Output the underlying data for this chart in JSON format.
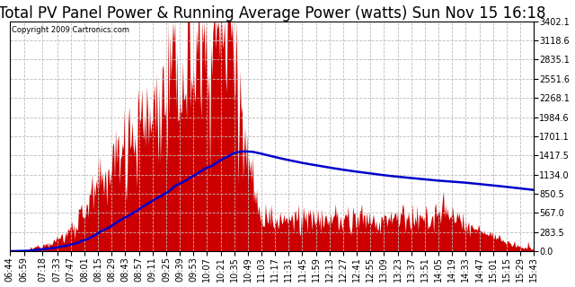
{
  "title": "Total PV Panel Power & Running Average Power (watts) Sun Nov 15 16:18",
  "copyright": "Copyright 2009 Cartronics.com",
  "background_color": "#ffffff",
  "plot_bg_color": "#ffffff",
  "y_max": 3402.1,
  "y_min": 0.0,
  "y_ticks": [
    0.0,
    283.5,
    567.0,
    850.5,
    1134.0,
    1417.5,
    1701.1,
    1984.6,
    2268.1,
    2551.6,
    2835.1,
    3118.6,
    3402.1
  ],
  "bar_color": "#cc0000",
  "avg_color": "#0000cc",
  "grid_color": "#bbbbbb",
  "title_fontsize": 12,
  "tick_fontsize": 7,
  "x_labels": [
    "06:44",
    "06:59",
    "07:18",
    "07:33",
    "07:47",
    "08:01",
    "08:15",
    "08:29",
    "08:43",
    "08:57",
    "09:11",
    "09:25",
    "09:39",
    "09:53",
    "10:07",
    "10:21",
    "10:35",
    "10:49",
    "11:03",
    "11:17",
    "11:31",
    "11:45",
    "11:59",
    "12:13",
    "12:27",
    "12:41",
    "12:55",
    "13:09",
    "13:23",
    "13:37",
    "13:51",
    "14:05",
    "14:19",
    "14:33",
    "14:47",
    "15:01",
    "15:15",
    "15:29",
    "15:43"
  ]
}
